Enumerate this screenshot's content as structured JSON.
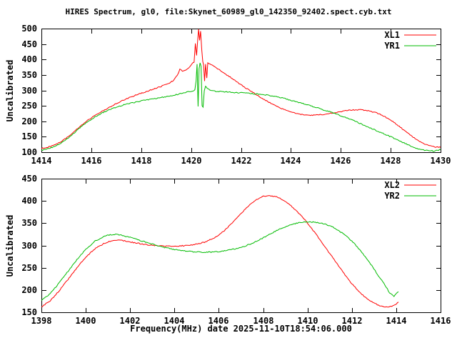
{
  "title": "HIRES Spectrum, gl0, file:Skynet_60989_gl0_142350_92402.spect.cyb.txt",
  "colors": {
    "background": "#ffffff",
    "axis": "#000000",
    "text": "#000000",
    "series_red": "#ff0000",
    "series_green": "#00bb00"
  },
  "chart_data": [
    {
      "type": "line",
      "panel": "top",
      "ylabel": "Uncalibrated",
      "xlabel": "",
      "xlim": [
        1414,
        1430
      ],
      "ylim": [
        100,
        500
      ],
      "xticks": [
        1414,
        1416,
        1418,
        1420,
        1422,
        1424,
        1426,
        1428,
        1430
      ],
      "yticks": [
        100,
        150,
        200,
        250,
        300,
        350,
        400,
        450,
        500
      ],
      "grid": false,
      "legend_position": "top-right",
      "series": [
        {
          "name": "XL1",
          "color": "#ff0000",
          "points": [
            [
              1414,
              112
            ],
            [
              1414.3,
              117
            ],
            [
              1414.6,
              126
            ],
            [
              1414.9,
              140
            ],
            [
              1415.2,
              158
            ],
            [
              1415.5,
              180
            ],
            [
              1415.8,
              200
            ],
            [
              1416.1,
              216
            ],
            [
              1416.4,
              231
            ],
            [
              1416.7,
              244
            ],
            [
              1417,
              258
            ],
            [
              1417.3,
              269
            ],
            [
              1417.6,
              279
            ],
            [
              1417.9,
              288
            ],
            [
              1418.2,
              296
            ],
            [
              1418.5,
              305
            ],
            [
              1418.8,
              313
            ],
            [
              1419.1,
              322
            ],
            [
              1419.3,
              332
            ],
            [
              1419.45,
              350
            ],
            [
              1419.55,
              368
            ],
            [
              1419.65,
              363
            ],
            [
              1419.75,
              364
            ],
            [
              1419.85,
              368
            ],
            [
              1419.95,
              376
            ],
            [
              1420.05,
              388
            ],
            [
              1420.12,
              391
            ],
            [
              1420.17,
              452
            ],
            [
              1420.22,
              413
            ],
            [
              1420.27,
              470
            ],
            [
              1420.3,
              498
            ],
            [
              1420.34,
              462
            ],
            [
              1420.38,
              492
            ],
            [
              1420.43,
              430
            ],
            [
              1420.47,
              392
            ],
            [
              1420.5,
              383
            ],
            [
              1420.54,
              330
            ],
            [
              1420.58,
              385
            ],
            [
              1420.63,
              340
            ],
            [
              1420.67,
              390
            ],
            [
              1420.75,
              386
            ],
            [
              1420.9,
              378
            ],
            [
              1421.1,
              368
            ],
            [
              1421.4,
              352
            ],
            [
              1421.7,
              336
            ],
            [
              1422,
              318
            ],
            [
              1422.3,
              302
            ],
            [
              1422.6,
              287
            ],
            [
              1422.9,
              272
            ],
            [
              1423.2,
              258
            ],
            [
              1423.5,
              246
            ],
            [
              1423.8,
              236
            ],
            [
              1424.1,
              228
            ],
            [
              1424.4,
              222
            ],
            [
              1424.7,
              220
            ],
            [
              1425,
              220
            ],
            [
              1425.3,
              222
            ],
            [
              1425.6,
              226
            ],
            [
              1425.9,
              230
            ],
            [
              1426.2,
              234
            ],
            [
              1426.5,
              237
            ],
            [
              1426.8,
              237
            ],
            [
              1427.1,
              234
            ],
            [
              1427.4,
              228
            ],
            [
              1427.7,
              218
            ],
            [
              1428,
              204
            ],
            [
              1428.3,
              186
            ],
            [
              1428.6,
              167
            ],
            [
              1428.9,
              149
            ],
            [
              1429.2,
              133
            ],
            [
              1429.5,
              122
            ],
            [
              1429.8,
              117
            ],
            [
              1430,
              116
            ]
          ]
        },
        {
          "name": "YR1",
          "color": "#00bb00",
          "points": [
            [
              1414,
              106
            ],
            [
              1414.3,
              112
            ],
            [
              1414.6,
              121
            ],
            [
              1414.9,
              135
            ],
            [
              1415.2,
              154
            ],
            [
              1415.5,
              176
            ],
            [
              1415.8,
              196
            ],
            [
              1416.1,
              212
            ],
            [
              1416.4,
              226
            ],
            [
              1416.7,
              237
            ],
            [
              1417,
              246
            ],
            [
              1417.3,
              253
            ],
            [
              1417.6,
              259
            ],
            [
              1417.9,
              264
            ],
            [
              1418.2,
              269
            ],
            [
              1418.5,
              273
            ],
            [
              1418.8,
              277
            ],
            [
              1419.1,
              281
            ],
            [
              1419.4,
              286
            ],
            [
              1419.7,
              292
            ],
            [
              1419.9,
              296
            ],
            [
              1420.05,
              298
            ],
            [
              1420.15,
              302
            ],
            [
              1420.2,
              330
            ],
            [
              1420.24,
              385
            ],
            [
              1420.28,
              248
            ],
            [
              1420.32,
              370
            ],
            [
              1420.36,
              390
            ],
            [
              1420.4,
              378
            ],
            [
              1420.44,
              252
            ],
            [
              1420.48,
              246
            ],
            [
              1420.53,
              300
            ],
            [
              1420.58,
              312
            ],
            [
              1420.65,
              306
            ],
            [
              1420.75,
              301
            ],
            [
              1420.9,
              298
            ],
            [
              1421.2,
              296
            ],
            [
              1421.6,
              294
            ],
            [
              1422,
              292
            ],
            [
              1422.4,
              290
            ],
            [
              1422.8,
              287
            ],
            [
              1423.2,
              283
            ],
            [
              1423.6,
              277
            ],
            [
              1424,
              268
            ],
            [
              1424.4,
              259
            ],
            [
              1424.8,
              250
            ],
            [
              1425.2,
              240
            ],
            [
              1425.6,
              230
            ],
            [
              1426,
              218
            ],
            [
              1426.4,
              206
            ],
            [
              1426.8,
              192
            ],
            [
              1427.2,
              178
            ],
            [
              1427.6,
              164
            ],
            [
              1428,
              150
            ],
            [
              1428.4,
              135
            ],
            [
              1428.8,
              120
            ],
            [
              1429.1,
              111
            ],
            [
              1429.4,
              106
            ],
            [
              1429.7,
              104
            ],
            [
              1430,
              108
            ]
          ]
        }
      ]
    },
    {
      "type": "line",
      "panel": "bottom",
      "ylabel": "Uncalibrated",
      "xlabel": "Frequency(MHz) date 2025-11-10T18:54:06.000",
      "xlim": [
        1398,
        1416
      ],
      "ylim": [
        150,
        450
      ],
      "xticks": [
        1398,
        1400,
        1402,
        1404,
        1406,
        1408,
        1410,
        1412,
        1414,
        1416
      ],
      "yticks": [
        150,
        200,
        250,
        300,
        350,
        400,
        450
      ],
      "grid": false,
      "legend_position": "top-right",
      "series": [
        {
          "name": "XL2",
          "color": "#ff0000",
          "points": [
            [
              1398,
              162
            ],
            [
              1398.4,
              176
            ],
            [
              1398.8,
              198
            ],
            [
              1399.2,
              224
            ],
            [
              1399.6,
              250
            ],
            [
              1400,
              274
            ],
            [
              1400.4,
              292
            ],
            [
              1400.8,
              304
            ],
            [
              1401.2,
              311
            ],
            [
              1401.5,
              312
            ],
            [
              1401.8,
              310
            ],
            [
              1402.2,
              306
            ],
            [
              1402.6,
              303
            ],
            [
              1403,
              300
            ],
            [
              1403.4,
              299
            ],
            [
              1403.8,
              298
            ],
            [
              1404.2,
              299
            ],
            [
              1404.6,
              300
            ],
            [
              1405,
              303
            ],
            [
              1405.4,
              308
            ],
            [
              1405.8,
              317
            ],
            [
              1406.2,
              331
            ],
            [
              1406.6,
              350
            ],
            [
              1407,
              372
            ],
            [
              1407.4,
              392
            ],
            [
              1407.7,
              403
            ],
            [
              1408,
              410
            ],
            [
              1408.3,
              412
            ],
            [
              1408.6,
              409
            ],
            [
              1408.9,
              402
            ],
            [
              1409.2,
              392
            ],
            [
              1409.5,
              378
            ],
            [
              1409.8,
              362
            ],
            [
              1410.1,
              344
            ],
            [
              1410.4,
              324
            ],
            [
              1410.8,
              296
            ],
            [
              1411.2,
              268
            ],
            [
              1411.6,
              240
            ],
            [
              1412,
              214
            ],
            [
              1412.4,
              192
            ],
            [
              1412.8,
              176
            ],
            [
              1413.2,
              166
            ],
            [
              1413.5,
              162
            ],
            [
              1413.8,
              163
            ],
            [
              1414,
              168
            ],
            [
              1414.1,
              173
            ]
          ]
        },
        {
          "name": "YR2",
          "color": "#00bb00",
          "points": [
            [
              1398,
              176
            ],
            [
              1398.4,
              192
            ],
            [
              1398.8,
              216
            ],
            [
              1399.2,
              242
            ],
            [
              1399.6,
              268
            ],
            [
              1400,
              291
            ],
            [
              1400.4,
              309
            ],
            [
              1400.8,
              320
            ],
            [
              1401.1,
              324
            ],
            [
              1401.4,
              325
            ],
            [
              1401.7,
              322
            ],
            [
              1402,
              318
            ],
            [
              1402.4,
              312
            ],
            [
              1402.8,
              306
            ],
            [
              1403.2,
              300
            ],
            [
              1403.6,
              295
            ],
            [
              1404,
              291
            ],
            [
              1404.4,
              288
            ],
            [
              1404.8,
              286
            ],
            [
              1405.2,
              285
            ],
            [
              1405.6,
              285
            ],
            [
              1406,
              286
            ],
            [
              1406.4,
              289
            ],
            [
              1406.8,
              293
            ],
            [
              1407.2,
              299
            ],
            [
              1407.6,
              307
            ],
            [
              1408,
              317
            ],
            [
              1408.4,
              328
            ],
            [
              1408.8,
              338
            ],
            [
              1409.2,
              346
            ],
            [
              1409.6,
              351
            ],
            [
              1410,
              353
            ],
            [
              1410.4,
              352
            ],
            [
              1410.8,
              348
            ],
            [
              1411.2,
              340
            ],
            [
              1411.6,
              327
            ],
            [
              1412,
              310
            ],
            [
              1412.4,
              288
            ],
            [
              1412.8,
              262
            ],
            [
              1413.2,
              232
            ],
            [
              1413.4,
              218
            ],
            [
              1413.7,
              194
            ],
            [
              1413.9,
              186
            ],
            [
              1414.1,
              196
            ]
          ]
        }
      ]
    }
  ]
}
